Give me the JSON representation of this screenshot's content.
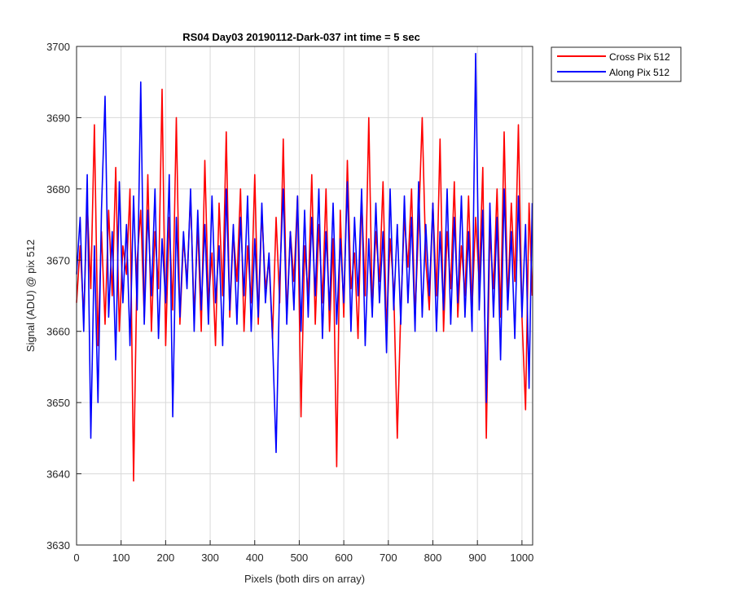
{
  "chart_data": {
    "type": "line",
    "title": "RS04 Day03 20190112-Dark-037 int time = 5 sec",
    "xlabel": "Pixels (both dirs on array)",
    "ylabel": "Signal (ADU) @ pix 512",
    "xlim": [
      0,
      1024
    ],
    "ylim": [
      3630,
      3700
    ],
    "xticks": [
      0,
      100,
      200,
      300,
      400,
      500,
      600,
      700,
      800,
      900,
      1000
    ],
    "yticks": [
      3630,
      3640,
      3650,
      3660,
      3670,
      3680,
      3690,
      3700
    ],
    "grid": true,
    "legend_position": "top-right outside",
    "series": [
      {
        "name": "Cross Pix 512",
        "color": "#ff0000",
        "x": [
          0,
          8,
          16,
          24,
          32,
          40,
          48,
          56,
          64,
          72,
          80,
          88,
          96,
          104,
          112,
          120,
          128,
          136,
          144,
          152,
          160,
          168,
          176,
          184,
          192,
          200,
          208,
          216,
          224,
          232,
          240,
          248,
          256,
          264,
          272,
          280,
          288,
          296,
          304,
          312,
          320,
          328,
          336,
          344,
          352,
          360,
          368,
          376,
          384,
          392,
          400,
          408,
          416,
          424,
          432,
          440,
          448,
          456,
          464,
          472,
          480,
          488,
          496,
          504,
          512,
          520,
          528,
          536,
          544,
          552,
          560,
          568,
          576,
          584,
          592,
          600,
          608,
          616,
          624,
          632,
          640,
          648,
          656,
          664,
          672,
          680,
          688,
          696,
          704,
          712,
          720,
          728,
          736,
          744,
          752,
          760,
          768,
          776,
          784,
          792,
          800,
          808,
          816,
          824,
          832,
          840,
          848,
          856,
          864,
          872,
          880,
          888,
          896,
          904,
          912,
          920,
          928,
          936,
          944,
          952,
          960,
          968,
          976,
          984,
          992,
          1000,
          1008,
          1016,
          1023
        ],
        "y": [
          3664,
          3672,
          3662,
          3678,
          3666,
          3689,
          3658,
          3674,
          3661,
          3677,
          3665,
          3683,
          3660,
          3672,
          3668,
          3680,
          3639,
          3670,
          3677,
          3662,
          3682,
          3660,
          3674,
          3666,
          3694,
          3658,
          3676,
          3663,
          3690,
          3661,
          3673,
          3667,
          3679,
          3662,
          3675,
          3660,
          3684,
          3664,
          3671,
          3658,
          3678,
          3665,
          3688,
          3662,
          3674,
          3667,
          3680,
          3660,
          3672,
          3664,
          3682,
          3661,
          3677,
          3666,
          3670,
          3659,
          3676,
          3664,
          3687,
          3662,
          3674,
          3667,
          3679,
          3648,
          3672,
          3665,
          3682,
          3661,
          3675,
          3664,
          3680,
          3660,
          3673,
          3641,
          3677,
          3662,
          3684,
          3666,
          3671,
          3659,
          3679,
          3665,
          3690,
          3663,
          3674,
          3667,
          3681,
          3660,
          3673,
          3666,
          3645,
          3663,
          3676,
          3669,
          3680,
          3662,
          3675,
          3690,
          3670,
          3663,
          3678,
          3665,
          3687,
          3660,
          3674,
          3666,
          3681,
          3662,
          3672,
          3665,
          3679,
          3663,
          3676,
          3667,
          3683,
          3645,
          3674,
          3666,
          3680,
          3662,
          3688,
          3664,
          3678,
          3667,
          3689,
          3662,
          3649,
          3678,
          3665
        ]
      },
      {
        "name": "Along Pix 512",
        "color": "#0000ff",
        "x": [
          0,
          8,
          16,
          24,
          32,
          40,
          48,
          56,
          64,
          72,
          80,
          88,
          96,
          104,
          112,
          120,
          128,
          136,
          144,
          152,
          160,
          168,
          176,
          184,
          192,
          200,
          208,
          216,
          224,
          232,
          240,
          248,
          256,
          264,
          272,
          280,
          288,
          296,
          304,
          312,
          320,
          328,
          336,
          344,
          352,
          360,
          368,
          376,
          384,
          392,
          400,
          408,
          416,
          424,
          432,
          440,
          448,
          456,
          464,
          472,
          480,
          488,
          496,
          504,
          512,
          520,
          528,
          536,
          544,
          552,
          560,
          568,
          576,
          584,
          592,
          600,
          608,
          616,
          624,
          632,
          640,
          648,
          656,
          664,
          672,
          680,
          688,
          696,
          704,
          712,
          720,
          728,
          736,
          744,
          752,
          760,
          768,
          776,
          784,
          792,
          800,
          808,
          816,
          824,
          832,
          840,
          848,
          856,
          864,
          872,
          880,
          888,
          896,
          904,
          912,
          920,
          928,
          936,
          944,
          952,
          960,
          968,
          976,
          984,
          992,
          1000,
          1008,
          1016,
          1023
        ],
        "y": [
          3668,
          3676,
          3660,
          3682,
          3645,
          3672,
          3650,
          3677,
          3693,
          3662,
          3674,
          3656,
          3681,
          3664,
          3675,
          3658,
          3679,
          3663,
          3695,
          3661,
          3677,
          3665,
          3680,
          3659,
          3673,
          3664,
          3682,
          3648,
          3676,
          3662,
          3674,
          3666,
          3680,
          3660,
          3677,
          3663,
          3675,
          3661,
          3679,
          3664,
          3672,
          3658,
          3680,
          3663,
          3675,
          3661,
          3676,
          3665,
          3679,
          3660,
          3673,
          3662,
          3678,
          3664,
          3671,
          3659,
          3643,
          3667,
          3680,
          3661,
          3674,
          3663,
          3679,
          3660,
          3677,
          3662,
          3676,
          3665,
          3680,
          3659,
          3674,
          3663,
          3678,
          3661,
          3673,
          3664,
          3681,
          3660,
          3676,
          3665,
          3680,
          3658,
          3673,
          3662,
          3678,
          3664,
          3674,
          3657,
          3680,
          3663,
          3675,
          3661,
          3679,
          3664,
          3676,
          3660,
          3681,
          3662,
          3675,
          3665,
          3678,
          3660,
          3674,
          3663,
          3680,
          3661,
          3676,
          3664,
          3679,
          3662,
          3674,
          3660,
          3699,
          3663,
          3677,
          3650,
          3678,
          3662,
          3676,
          3656,
          3680,
          3663,
          3674,
          3659,
          3679,
          3662,
          3675,
          3652,
          3678
        ]
      }
    ]
  }
}
